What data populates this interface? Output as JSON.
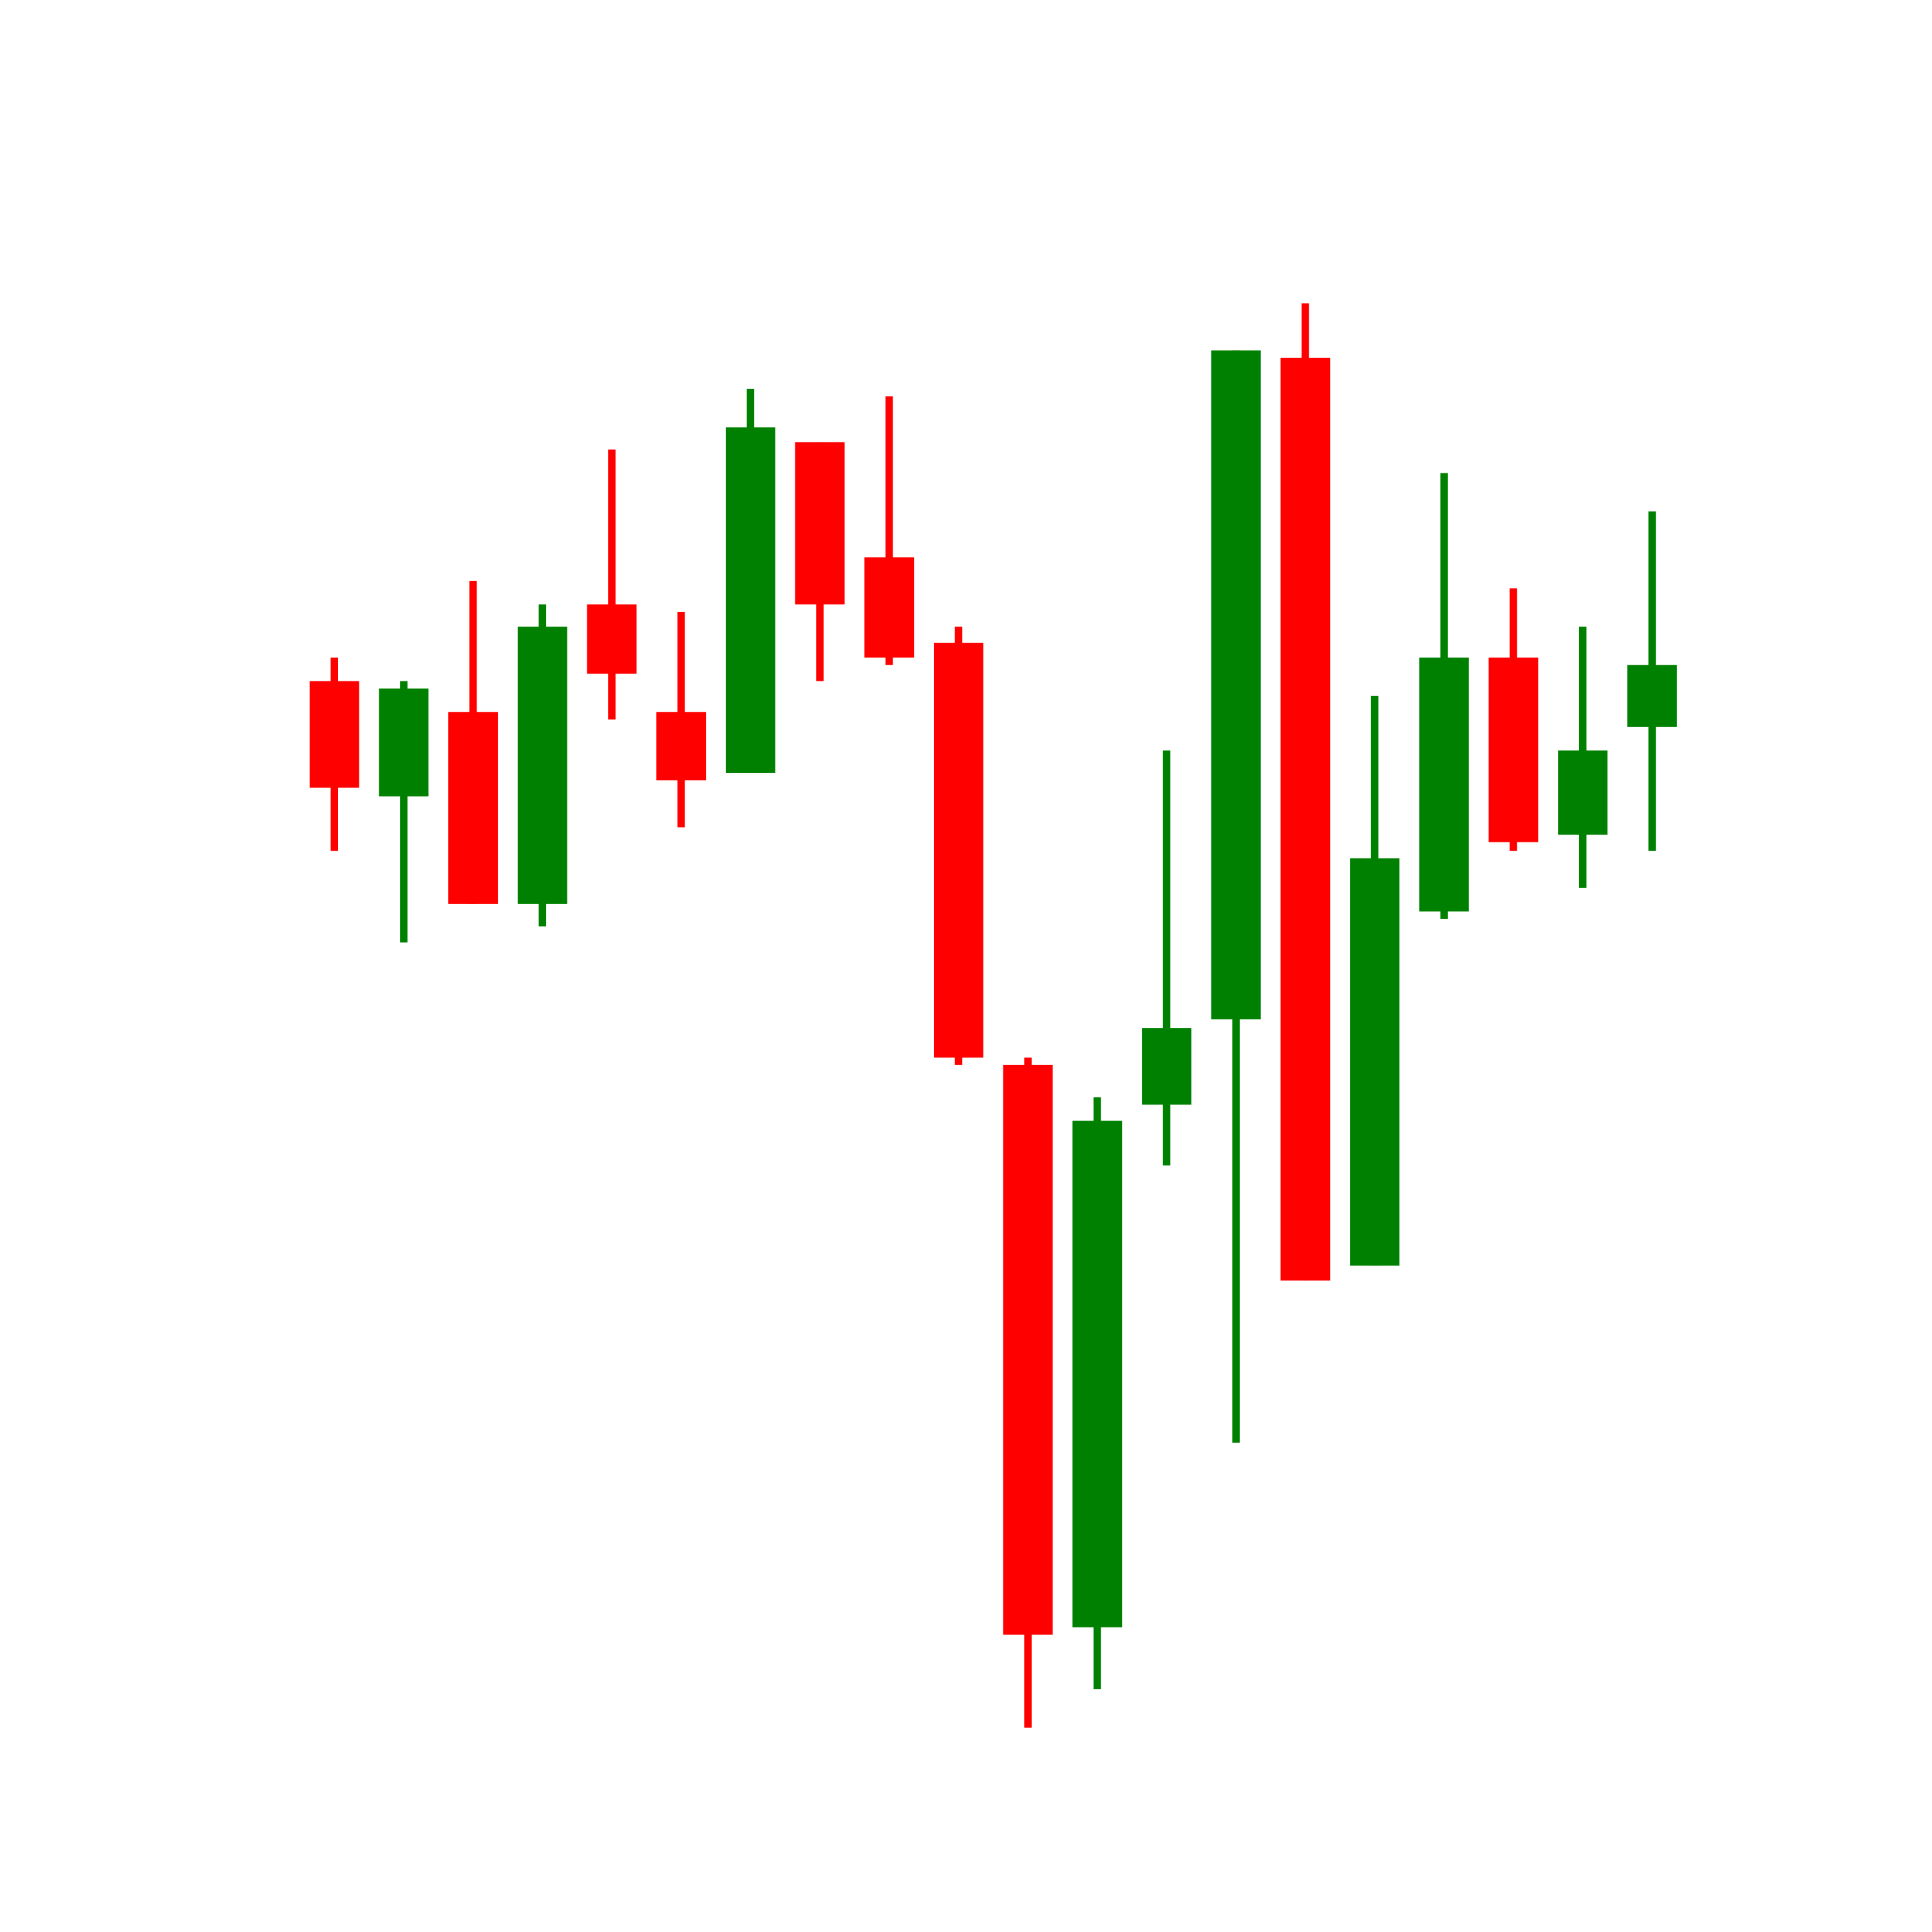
{
  "chart_data": {
    "type": "candlestick",
    "open": [
      101.0,
      91.7,
      98.5,
      83.0,
      107.2,
      98.5,
      93.6,
      120.3,
      111.0,
      104.1,
      70.0,
      24.6,
      66.8,
      73.7,
      127.1,
      53.8,
      82.4,
      102.9,
      88.6,
      97.3
    ],
    "high": [
      102.9,
      101.0,
      109.1,
      107.2,
      119.7,
      106.6,
      124.6,
      120.3,
      124.0,
      105.4,
      70.6,
      67.4,
      95.4,
      127.7,
      131.5,
      99.8,
      117.8,
      108.5,
      105.4,
      114.7
    ],
    "low": [
      87.3,
      79.9,
      83.0,
      81.2,
      97.9,
      89.2,
      93.6,
      101.0,
      102.3,
      70.0,
      16.5,
      19.6,
      61.9,
      39.5,
      52.6,
      53.8,
      81.8,
      87.3,
      84.3,
      87.3
    ],
    "close": [
      92.4,
      100.4,
      83.0,
      105.4,
      101.6,
      93.0,
      121.5,
      107.2,
      102.9,
      70.6,
      24.0,
      65.5,
      73.0,
      127.7,
      52.6,
      86.7,
      102.9,
      88.0,
      95.4,
      102.3
    ],
    "up_color": "#008000",
    "down_color": "#ff0000",
    "ylim": [
      0,
      156
    ]
  }
}
